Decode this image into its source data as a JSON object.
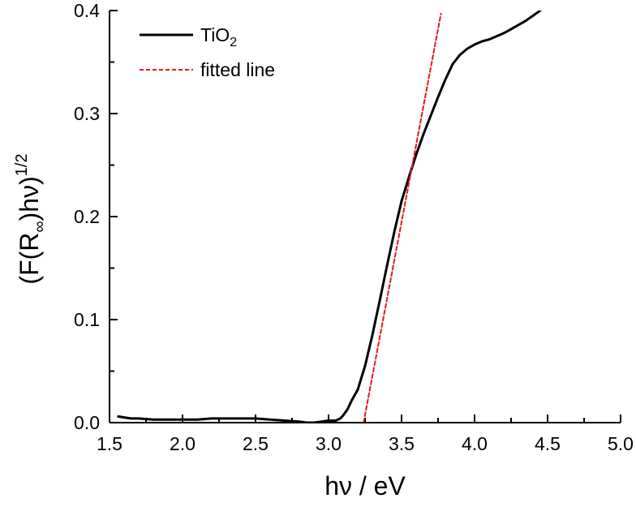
{
  "chart_data": {
    "type": "line",
    "xlabel": "hν / eV",
    "ylabel": {
      "prefix": "(F(R",
      "subscript": "∞",
      "middle": ")hν)",
      "superscript": "1/2"
    },
    "xlim": [
      1.5,
      5.0
    ],
    "ylim": [
      0.0,
      0.4
    ],
    "xticks": [
      1.5,
      2.0,
      2.5,
      3.0,
      3.5,
      4.0,
      4.5,
      5.0
    ],
    "xtick_labels": [
      "1.5",
      "2.0",
      "2.5",
      "3.0",
      "3.5",
      "4.0",
      "4.5",
      "5.0"
    ],
    "yticks": [
      0.0,
      0.1,
      0.2,
      0.3,
      0.4
    ],
    "ytick_labels": [
      "0.0",
      "0.1",
      "0.2",
      "0.3",
      "0.4"
    ],
    "legend_position": "top-left",
    "grid": false,
    "series": [
      {
        "name": "TiO",
        "name_subscript": "2",
        "color": "#000000",
        "style": "solid",
        "x": [
          1.56,
          1.6,
          1.65,
          1.7,
          1.8,
          1.9,
          2.0,
          2.1,
          2.2,
          2.3,
          2.4,
          2.5,
          2.6,
          2.7,
          2.8,
          2.85,
          2.9,
          2.95,
          3.0,
          3.05,
          3.08,
          3.1,
          3.13,
          3.16,
          3.2,
          3.25,
          3.3,
          3.35,
          3.4,
          3.45,
          3.5,
          3.55,
          3.6,
          3.65,
          3.7,
          3.75,
          3.8,
          3.85,
          3.9,
          3.95,
          4.0,
          4.05,
          4.1,
          4.15,
          4.2,
          4.25,
          4.3,
          4.35,
          4.4,
          4.45
        ],
        "y": [
          0.006,
          0.005,
          0.004,
          0.004,
          0.003,
          0.003,
          0.003,
          0.003,
          0.004,
          0.004,
          0.004,
          0.004,
          0.003,
          0.002,
          0.001,
          0.0,
          0.0,
          0.001,
          0.002,
          0.002,
          0.004,
          0.007,
          0.013,
          0.022,
          0.032,
          0.055,
          0.085,
          0.118,
          0.152,
          0.185,
          0.215,
          0.238,
          0.26,
          0.28,
          0.298,
          0.316,
          0.333,
          0.348,
          0.357,
          0.363,
          0.367,
          0.37,
          0.372,
          0.375,
          0.378,
          0.382,
          0.386,
          0.39,
          0.395,
          0.4
        ]
      },
      {
        "name": "fitted line",
        "color": "#e41a1c",
        "style": "dashed",
        "x": [
          3.24,
          3.77
        ],
        "y": [
          0.0,
          0.397
        ]
      }
    ]
  }
}
